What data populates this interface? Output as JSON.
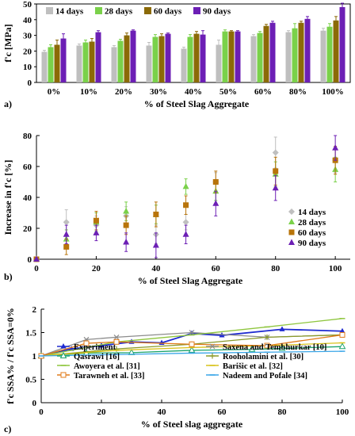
{
  "chart_data": [
    {
      "panel": "a)",
      "type": "bar",
      "title": "",
      "xlabel": "% of Steel Slag Aggregate",
      "ylabel": "f'c [MPa]",
      "ylim": [
        0,
        50
      ],
      "yticks": [
        0,
        10,
        20,
        30,
        40,
        50
      ],
      "categories": [
        "0%",
        "10%",
        "20%",
        "30%",
        "40%",
        "50%",
        "60%",
        "80%",
        "100%"
      ],
      "legend_position": "top-left",
      "grid": false,
      "series": [
        {
          "name": "14 days",
          "color": "#bfbfbf",
          "values": [
            19.5,
            23.5,
            22.5,
            23.5,
            21.5,
            24.0,
            29.5,
            32.0,
            33.0
          ],
          "errors": [
            1.0,
            1.0,
            1.0,
            2.0,
            1.0,
            3.0,
            1.0,
            1.0,
            1.5
          ]
        },
        {
          "name": "28 days",
          "color": "#7ad14a",
          "values": [
            22.5,
            25.5,
            26.5,
            29.0,
            29.0,
            32.5,
            31.5,
            34.5,
            35.5
          ],
          "errors": [
            1.5,
            1.5,
            1.0,
            1.5,
            1.5,
            1.0,
            1.0,
            3.0,
            2.0
          ]
        },
        {
          "name": "60 days",
          "color": "#8b6a07",
          "values": [
            24.0,
            26.0,
            30.0,
            29.5,
            31.0,
            32.5,
            36.0,
            38.0,
            39.5
          ],
          "errors": [
            3.0,
            2.0,
            1.5,
            1.5,
            1.5,
            0.5,
            1.0,
            1.0,
            2.5
          ]
        },
        {
          "name": "90 days",
          "color": "#6c1fb5",
          "values": [
            28.0,
            32.0,
            33.0,
            31.0,
            30.5,
            32.5,
            38.0,
            40.5,
            48.0
          ],
          "errors": [
            3.0,
            1.0,
            0.5,
            0.5,
            2.5,
            0.5,
            1.0,
            1.5,
            2.5
          ]
        }
      ]
    },
    {
      "panel": "b)",
      "type": "scatter",
      "title": "",
      "xlabel": "% of Steel Slag Aggregate",
      "ylabel": "Increase in f'c [%]",
      "xlim": [
        0,
        105
      ],
      "ylim": [
        0,
        80
      ],
      "xticks": [
        0,
        20,
        40,
        60,
        80,
        100
      ],
      "yticks": [
        0,
        20,
        40,
        60,
        80
      ],
      "legend_position": "right",
      "grid": false,
      "x": [
        0,
        10,
        20,
        30,
        40,
        50,
        60,
        80,
        100
      ],
      "series": [
        {
          "name": "14 days",
          "color": "#bfbfbf",
          "marker": "diamond",
          "values": [
            0,
            24,
            22,
            28,
            16,
            24,
            50,
            69,
            64
          ],
          "errors": [
            0,
            8,
            6,
            6,
            6,
            5,
            6,
            10,
            8
          ]
        },
        {
          "name": "28 days",
          "color": "#7ad14a",
          "marker": "triangle",
          "values": [
            0,
            13,
            24,
            31,
            29,
            47,
            44,
            55,
            58
          ],
          "errors": [
            0,
            6,
            6,
            6,
            6,
            5,
            6,
            8,
            8
          ]
        },
        {
          "name": "60 days",
          "color": "#b8740a",
          "marker": "square",
          "values": [
            0,
            8,
            25,
            22,
            29,
            35,
            50,
            57,
            64
          ],
          "errors": [
            0,
            5,
            6,
            6,
            8,
            6,
            7,
            9,
            9
          ]
        },
        {
          "name": "90 days",
          "color": "#6c1fb5",
          "marker": "triangle",
          "values": [
            0,
            16,
            17,
            11,
            9,
            16,
            36,
            46,
            72
          ],
          "errors": [
            0,
            6,
            5,
            6,
            8,
            6,
            8,
            8,
            8
          ]
        }
      ]
    },
    {
      "panel": "c)",
      "type": "line",
      "title": "",
      "xlabel": "% of Steel slag aggregate",
      "ylabel": "f'c SSA% / f'c SSA=0%",
      "xlim": [
        0,
        100
      ],
      "ylim": [
        0,
        2
      ],
      "xticks": [
        0,
        20,
        40,
        60,
        80,
        100
      ],
      "yticks": [
        0,
        0.5,
        1,
        1.5,
        2
      ],
      "legend_position": "bottom, two columns",
      "grid": false,
      "series": [
        {
          "name": "Experiment",
          "color": "#1f2bd1",
          "marker": "triangle",
          "x": [
            0,
            10,
            20,
            30,
            40,
            50,
            60,
            80,
            100
          ],
          "y": [
            1.0,
            1.15,
            1.22,
            1.3,
            1.28,
            1.48,
            1.44,
            1.57,
            1.53
          ]
        },
        {
          "name": "Saxena and Tembhurkar [10]",
          "color": "#8c8c8c",
          "marker": "x",
          "x": [
            0,
            15,
            25,
            50,
            75,
            100
          ],
          "y": [
            1.0,
            1.35,
            1.4,
            1.5,
            1.4,
            1.45
          ]
        },
        {
          "name": "Qasrawi [16]",
          "color": "#1aa36a",
          "marker": "triangle-open",
          "x": [
            0,
            15,
            30,
            50,
            70,
            80,
            100
          ],
          "y": [
            1.0,
            1.06,
            1.07,
            1.12,
            1.14,
            1.16,
            1.2
          ]
        },
        {
          "name": "Rooholamini et al. [30]",
          "color": "#8a9a2a",
          "marker": "plus",
          "x": [
            0,
            25,
            50,
            75,
            100
          ],
          "y": [
            1.0,
            1.15,
            1.25,
            1.4,
            1.45
          ]
        },
        {
          "name": "Awoyera et al. [31]",
          "color": "#8fc63f",
          "marker": "dash",
          "x": [
            0,
            25,
            50,
            75,
            100
          ],
          "y": [
            1.0,
            1.3,
            1.45,
            1.62,
            1.8
          ]
        },
        {
          "name": "Barišic et al. [32]",
          "color": "#d8c21a",
          "marker": "dash",
          "x": [
            0,
            25,
            50,
            75,
            100
          ],
          "y": [
            1.0,
            1.12,
            1.18,
            1.22,
            1.28
          ]
        },
        {
          "name": "Tarawneh et al. [33]",
          "color": "#e07b1a",
          "marker": "square-open",
          "x": [
            0,
            15,
            25,
            50,
            75,
            100
          ],
          "y": [
            1.0,
            1.27,
            1.3,
            1.25,
            1.22,
            1.45
          ]
        },
        {
          "name": "Nadeem and Pofale [34]",
          "color": "#3aa6e8",
          "marker": "dash",
          "x": [
            0,
            25,
            50,
            75,
            100
          ],
          "y": [
            1.0,
            1.03,
            1.06,
            1.08,
            1.1
          ]
        }
      ]
    }
  ]
}
